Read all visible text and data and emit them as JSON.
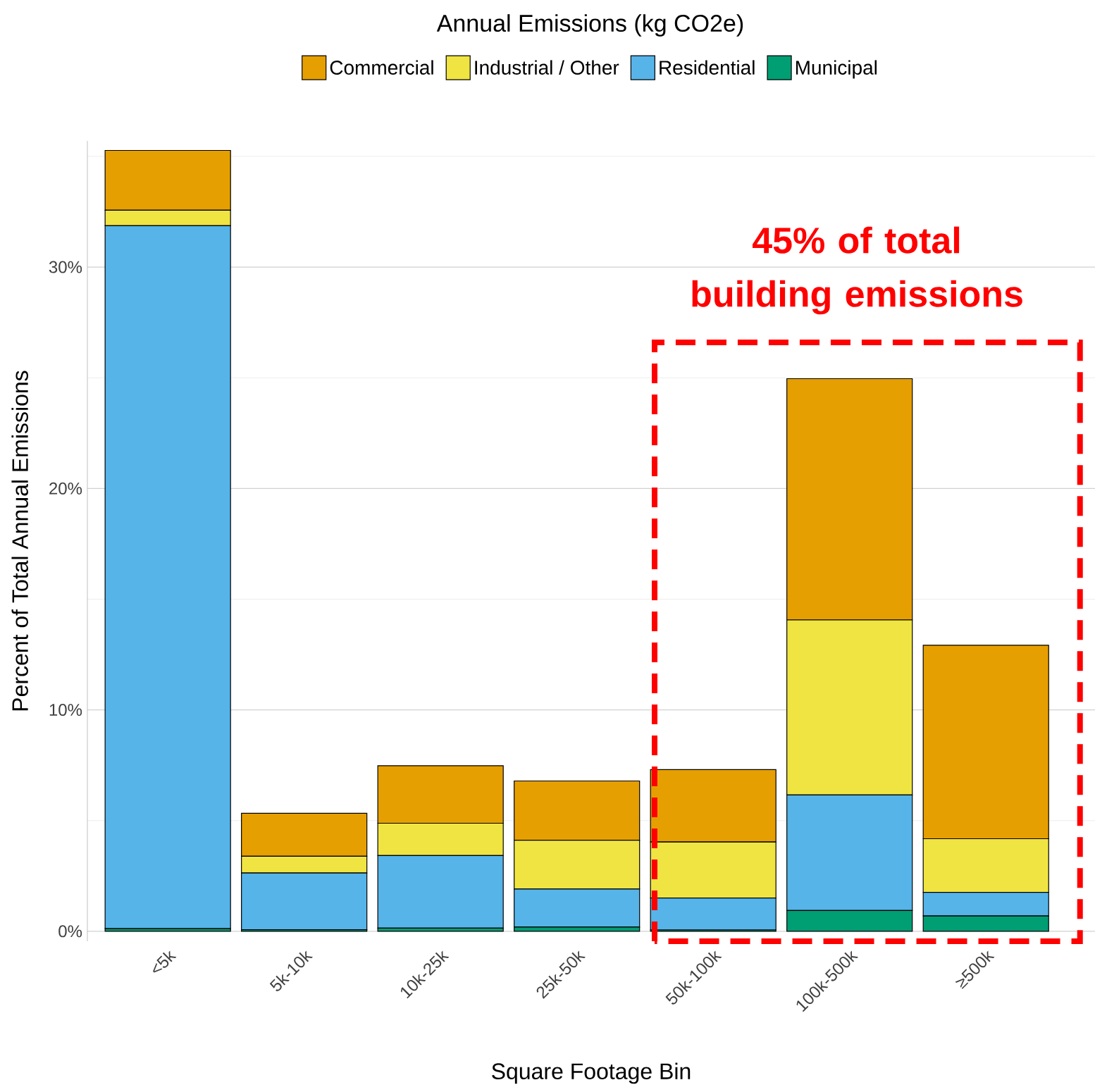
{
  "chart_data": {
    "type": "bar",
    "stacked": true,
    "legend_title": "Annual Emissions (kg CO2e)",
    "xlabel": "Square Footage Bin",
    "ylabel": "Percent of Total Annual Emissions",
    "categories": [
      "<5k",
      "5k-10k",
      "10k-25k",
      "25k-50k",
      "50k-100k",
      "100k-500k",
      "≥500k"
    ],
    "series": [
      {
        "name": "Municipal",
        "color": "#009e73",
        "values": [
          0.12,
          0.07,
          0.14,
          0.19,
          0.06,
          0.94,
          0.69
        ]
      },
      {
        "name": "Residential",
        "color": "#56b4e9",
        "values": [
          31.75,
          2.56,
          3.28,
          1.72,
          1.44,
          5.22,
          1.07
        ]
      },
      {
        "name": "Industrial / Other",
        "color": "#f0e442",
        "values": [
          0.7,
          0.76,
          1.46,
          2.2,
          2.53,
          7.9,
          2.42
        ]
      },
      {
        "name": "Commercial",
        "color": "#e69f00",
        "values": [
          2.7,
          1.94,
          2.6,
          2.68,
          3.27,
          10.9,
          8.74
        ]
      }
    ],
    "ylim": [
      -0.45,
      35.7
    ],
    "yticks": [
      {
        "value": 0,
        "label": "0%"
      },
      {
        "value": 5,
        "label": null
      },
      {
        "value": 10,
        "label": "10%"
      },
      {
        "value": 15,
        "label": null
      },
      {
        "value": 20,
        "label": "20%"
      },
      {
        "value": 25,
        "label": null
      },
      {
        "value": 30,
        "label": "30%"
      },
      {
        "value": 35,
        "label": null
      }
    ],
    "grid": "y",
    "legend": "top",
    "annotations": [
      "45% of total building emissions"
    ]
  }
}
